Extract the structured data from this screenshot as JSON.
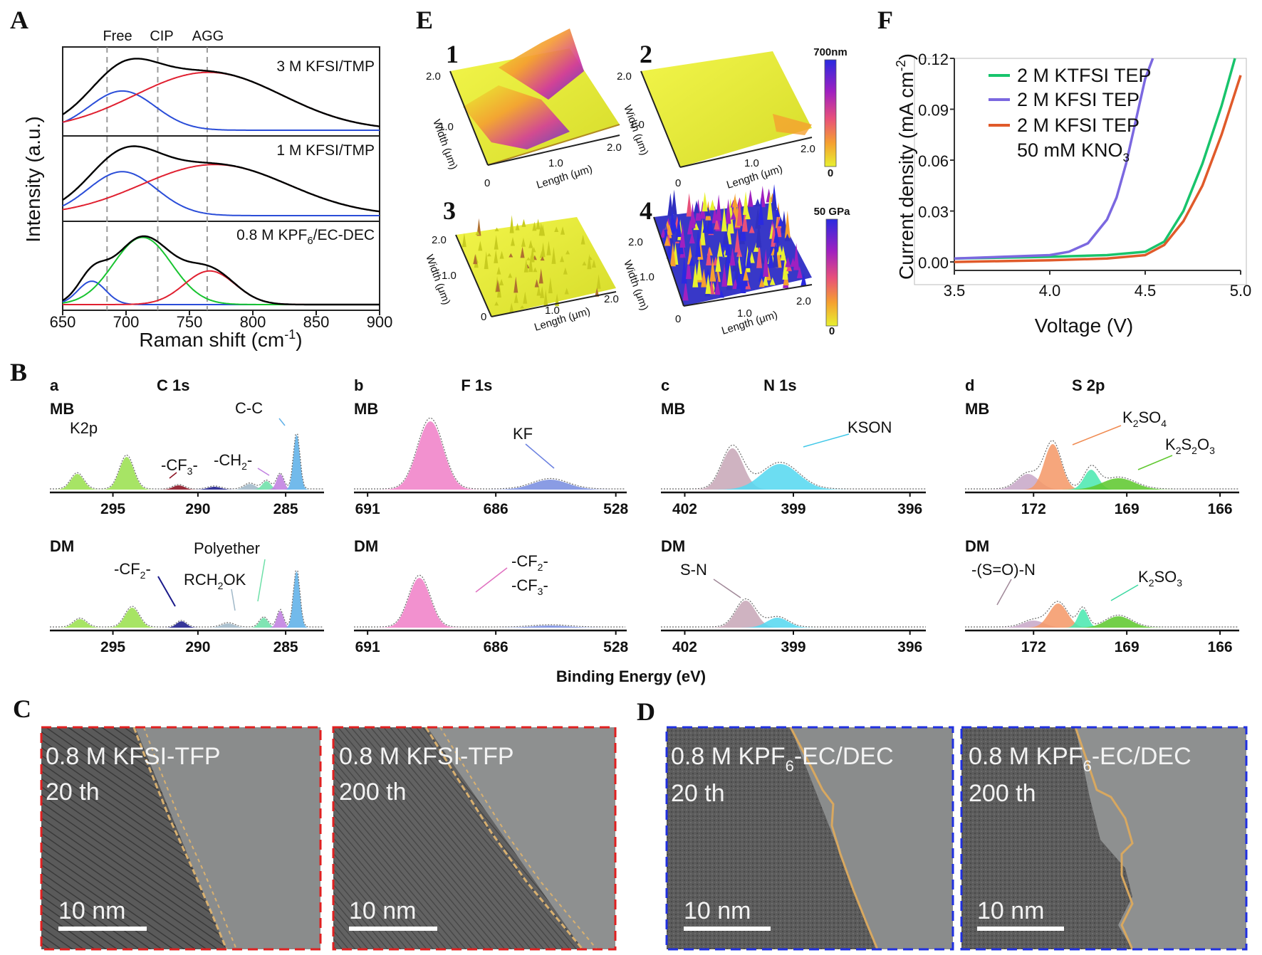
{
  "panelA": {
    "letter": "A",
    "guide_labels": [
      "Free",
      "CIP",
      "AGG"
    ],
    "guide_positions": [
      685,
      725,
      764
    ],
    "ylabel": "Intensity (a.u.)",
    "xlabel": "Raman shift (cm",
    "xlabel_sup": "-1",
    "xlabel_end": ")",
    "xticks": [
      "650",
      "700",
      "750",
      "800",
      "850",
      "900"
    ],
    "subplots": [
      {
        "label": "3 M KFSI/TMP",
        "label_sub": "",
        "label_end": ""
      },
      {
        "label": "1 M KFSI/TMP",
        "label_sub": "",
        "label_end": ""
      },
      {
        "label": "0.8 M KPF",
        "label_sub": "6",
        "label_end": "/EC-DEC"
      }
    ],
    "colors": {
      "total": "#000000",
      "free": "#2a4dd8",
      "cip": "#18c430",
      "agg": "#e02030",
      "guide": "#9a9a9a"
    }
  },
  "chart_data": [
    {
      "type": "line",
      "title": "",
      "xlabel": "Raman shift (cm-1)",
      "ylabel": "Intensity (a.u.)",
      "xlim": [
        650,
        900
      ],
      "series": [
        {
          "name": "3 M KFSI/TMP - total",
          "components": [
            {
              "name": "Free",
              "center": 697,
              "height": 0.42,
              "width": 26
            },
            {
              "name": "AGG",
              "center": 765,
              "height": 0.62,
              "width": 58
            }
          ]
        },
        {
          "name": "1 M KFSI/TMP - total",
          "components": [
            {
              "name": "Free",
              "center": 697,
              "height": 0.49,
              "width": 27
            },
            {
              "name": "AGG",
              "center": 770,
              "height": 0.57,
              "width": 58
            }
          ]
        },
        {
          "name": "0.8 M KPF6/EC-DEC - total",
          "components": [
            {
              "name": "Free",
              "center": 673,
              "height": 0.25,
              "width": 11
            },
            {
              "name": "CIP",
              "center": 713,
              "height": 0.72,
              "width": 23
            },
            {
              "name": "AGG",
              "center": 766,
              "height": 0.36,
              "width": 20
            }
          ]
        }
      ]
    },
    {
      "type": "line",
      "title": "",
      "xlabel": "Voltage (V)",
      "ylabel": "Current density (mA cm-2)",
      "xlim": [
        3.5,
        5.0
      ],
      "ylim": [
        -0.005,
        0.12
      ],
      "xticks": [
        "3.5",
        "4.0",
        "4.5",
        "5.0"
      ],
      "yticks": [
        "0.00",
        "0.03",
        "0.06",
        "0.09",
        "0.12"
      ],
      "series": [
        {
          "name": "2 M KTFSI TEP",
          "color": "#18c46c",
          "x": [
            3.5,
            4.0,
            4.3,
            4.5,
            4.6,
            4.7,
            4.8,
            4.9,
            4.97
          ],
          "y": [
            0.002,
            0.003,
            0.004,
            0.006,
            0.012,
            0.03,
            0.058,
            0.092,
            0.12
          ]
        },
        {
          "name": "2 M KFSI TEP",
          "color": "#7b68e0",
          "x": [
            3.5,
            4.0,
            4.1,
            4.2,
            4.3,
            4.35,
            4.4,
            4.45,
            4.5,
            4.54
          ],
          "y": [
            0.002,
            0.004,
            0.006,
            0.011,
            0.025,
            0.038,
            0.058,
            0.083,
            0.108,
            0.12
          ]
        },
        {
          "name": "2 M KFSI TEP 50 mM KNO3",
          "color": "#e05a2a",
          "x": [
            3.5,
            4.0,
            4.3,
            4.5,
            4.6,
            4.7,
            4.8,
            4.9,
            5.0
          ],
          "y": [
            0.0,
            0.001,
            0.002,
            0.004,
            0.01,
            0.024,
            0.045,
            0.075,
            0.11
          ]
        }
      ]
    }
  ],
  "panelF": {
    "letter": "F",
    "ylabel_main": "Current density (mA cm",
    "ylabel_sup": "-2",
    "ylabel_end": ")",
    "xlabel": "Voltage (V)",
    "legend": [
      "2 M KTFSI TEP",
      "2 M KFSI TEP",
      "2 M KFSI TEP"
    ],
    "legend_extra": "50 mM KNO",
    "legend_extra_sub": "3"
  },
  "panelE": {
    "letter": "E",
    "subplots": [
      {
        "num": "1",
        "ticks": [
          "2.0",
          "1.0",
          "0",
          "1.0",
          "2.0"
        ]
      },
      {
        "num": "2",
        "ticks": [
          "2.0",
          "1.0",
          "0",
          "1.0",
          "2.0"
        ]
      },
      {
        "num": "3",
        "ticks": [
          "2.0",
          "1.0",
          "0",
          "1.0",
          "2.0"
        ]
      },
      {
        "num": "4",
        "ticks": [
          "2.0",
          "1.0",
          "0",
          "1.0",
          "2.0"
        ]
      }
    ],
    "width_label": "Width (μm)",
    "length_label": "Length (μm)",
    "colorbar1": {
      "max": "700nm",
      "min": "0"
    },
    "colorbar2": {
      "max": "50 GPa",
      "min": "0"
    }
  },
  "panelB": {
    "letter": "B",
    "xlabel": "Binding Energy (eV)",
    "columns": [
      {
        "sub": "a",
        "title": "C 1s",
        "ticks": [
          "295",
          "290",
          "285"
        ]
      },
      {
        "sub": "b",
        "title": "F 1s",
        "ticks": [
          "691",
          "686",
          "528"
        ]
      },
      {
        "sub": "c",
        "title": "N 1s",
        "ticks": [
          "402",
          "399",
          "396"
        ]
      },
      {
        "sub": "d",
        "title": "S 2p",
        "ticks": [
          "172",
          "169",
          "166"
        ]
      }
    ],
    "row_labels": [
      "MB",
      "DM"
    ],
    "annotations": {
      "c1s_mb": {
        "k2p": "K2p",
        "cf3": "-CF",
        "cf3_sub": "3",
        "cf3_end": "-",
        "ch2": "-CH",
        "ch2_sub": "2",
        "ch2_end": "-",
        "cc": "C-C"
      },
      "c1s_dm": {
        "cf2": "-CF",
        "cf2_sub": "2",
        "cf2_end": "-",
        "rch2ok": "RCH",
        "rch2ok_sub": "2",
        "rch2ok_end": "OK",
        "polyether": "Polyether"
      },
      "f1s_mb": {
        "kf": "KF"
      },
      "f1s_dm": {
        "cf2": "-CF",
        "cf2_sub": "2",
        "cf2_end": "-",
        "cf3": "-CF",
        "cf3_sub": "3",
        "cf3_end": "-"
      },
      "n1s_mb": {
        "kson": "KSON"
      },
      "n1s_dm": {
        "sn": "S-N"
      },
      "s2p_mb": {
        "k2so4": "K",
        "k2so4_a": "2",
        "k2so4_b": "SO",
        "k2so4_c": "4",
        "k2s2o3": "K",
        "k2s2o3_a": "2",
        "k2s2o3_b": "S",
        "k2s2o3_c": "2",
        "k2s2o3_d": "O",
        "k2s2o3_e": "3"
      },
      "s2p_dm": {
        "son": "-(S=O)-N",
        "k2so3": "K",
        "k2so3_a": "2",
        "k2so3_b": "SO",
        "k2so3_c": "3"
      }
    }
  },
  "panelC": {
    "letter": "C",
    "images": [
      {
        "line1": "0.8 M KFSI-TFP",
        "line2": "20 th",
        "scale": "10 nm"
      },
      {
        "line1": "0.8 M KFSI-TFP",
        "line2": "200 th",
        "scale": "10 nm"
      }
    ],
    "border_color": "#e02020"
  },
  "panelD": {
    "letter": "D",
    "images": [
      {
        "line1": "0.8 M KPF",
        "line1_sub": "6",
        "line1_end": "-EC/DEC",
        "line2": "20 th",
        "scale": "10 nm"
      },
      {
        "line1": "0.8 M KPF",
        "line1_sub": "6",
        "line1_end": "-EC/DEC",
        "line2": "200 th",
        "scale": "10 nm"
      }
    ],
    "border_color": "#2030e0"
  }
}
